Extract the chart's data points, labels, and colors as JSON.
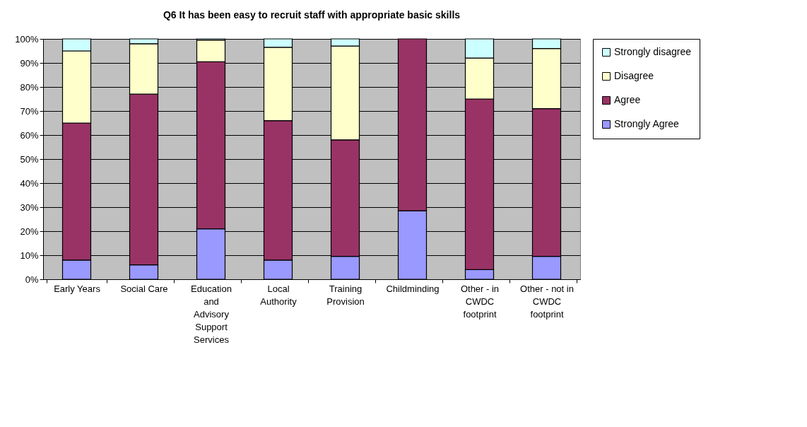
{
  "chart_data": {
    "type": "bar",
    "stacked": true,
    "title": "Q6 It has been easy to recruit staff with appropriate basic skills",
    "categories": [
      "Early Years",
      "Social Care",
      "Education\nand\nAdvisory\nSupport\nServices",
      "Local\nAuthority",
      "Training\nProvision",
      "Childminding",
      "Other - in\nCWDC\nfootprint",
      "Other - not in\nCWDC\nfootprint"
    ],
    "series": [
      {
        "name": "Strongly Agree",
        "color": "#9999ff",
        "values": [
          8,
          6,
          21,
          8,
          9.5,
          28.5,
          4,
          9.5
        ]
      },
      {
        "name": "Agree",
        "color": "#993366",
        "values": [
          57,
          71,
          69.5,
          58,
          48.5,
          71.5,
          71,
          61.5
        ]
      },
      {
        "name": "Disagree",
        "color": "#ffffcc",
        "values": [
          30,
          21,
          9,
          30.5,
          39,
          null,
          17,
          25
        ]
      },
      {
        "name": "Strongly disagree",
        "color": "#ccffff",
        "values": [
          5,
          2,
          0.5,
          3.5,
          3,
          null,
          8,
          4
        ]
      }
    ],
    "ylim": [
      0,
      100
    ],
    "yticks": [
      {
        "value": 0,
        "label": "0%"
      },
      {
        "value": 10,
        "label": "10%"
      },
      {
        "value": 20,
        "label": "20%"
      },
      {
        "value": 30,
        "label": "30%"
      },
      {
        "value": 40,
        "label": "40%"
      },
      {
        "value": 50,
        "label": "50%"
      },
      {
        "value": 60,
        "label": "60%"
      },
      {
        "value": 70,
        "label": "70%"
      },
      {
        "value": 80,
        "label": "80%"
      },
      {
        "value": 90,
        "label": "90%"
      },
      {
        "value": 100,
        "label": "100%"
      }
    ],
    "grid": "y",
    "legend": "right"
  }
}
